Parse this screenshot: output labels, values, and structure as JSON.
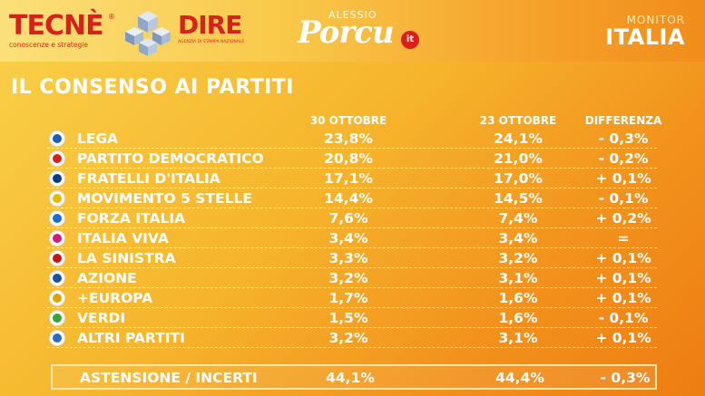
{
  "header": {
    "tecne_logo": "TECNÈ",
    "tecne_tagline": "conoscenze e strategie",
    "tecne_reg": "®",
    "dire_logo": "DIRE",
    "dire_tagline": "AGENZIA DI STAMPA NAZIONALE",
    "porcu_first": "ALESSIO",
    "porcu_last": "Porcu",
    "porcu_it": "it",
    "monitor_small": "MONITOR",
    "monitor_big": "ITALIA"
  },
  "title": "IL CONSENSO AI PARTITI",
  "columns": [
    "30 OTTOBRE",
    "23 OTTOBRE",
    "DIFFERENZA"
  ],
  "parties": [
    {
      "name": "LEGA",
      "oct30": "23,8%",
      "oct23": "24,1%",
      "diff": "- 0,3%",
      "icon": "lega-icon",
      "color": "#1a5fb4"
    },
    {
      "name": "PARTITO DEMOCRATICO",
      "oct30": "20,8%",
      "oct23": "21,0%",
      "diff": "- 0,2%",
      "icon": "pd-icon",
      "color": "#d8201d"
    },
    {
      "name": "FRATELLI D'ITALIA",
      "oct30": "17,1%",
      "oct23": "17,0%",
      "diff": "+ 0,1%",
      "icon": "fdi-icon",
      "color": "#0b3a8a"
    },
    {
      "name": "MOVIMENTO 5 STELLE",
      "oct30": "14,4%",
      "oct23": "14,5%",
      "diff": "- 0,1%",
      "icon": "m5s-icon",
      "color": "#e8b800"
    },
    {
      "name": "FORZA ITALIA",
      "oct30": "7,6%",
      "oct23": "7,4%",
      "diff": "+ 0,2%",
      "icon": "fi-icon",
      "color": "#1c6fd1"
    },
    {
      "name": "ITALIA VIVA",
      "oct30": "3,4%",
      "oct23": "3,4%",
      "diff": "=",
      "icon": "iv-icon",
      "color": "#d21b7c"
    },
    {
      "name": "LA SINISTRA",
      "oct30": "3,3%",
      "oct23": "3,2%",
      "diff": "+ 0,1%",
      "icon": "sinistra-icon",
      "color": "#c81414"
    },
    {
      "name": "AZIONE",
      "oct30": "3,2%",
      "oct23": "3,1%",
      "diff": "+ 0,1%",
      "icon": "azione-icon",
      "color": "#1e4fa8"
    },
    {
      "name": "+EUROPA",
      "oct30": "1,7%",
      "oct23": "1,6%",
      "diff": "+ 0,1%",
      "icon": "europa-icon",
      "color": "#e0a400"
    },
    {
      "name": "VERDI",
      "oct30": "1,5%",
      "oct23": "1,6%",
      "diff": "- 0,1%",
      "icon": "verdi-icon",
      "color": "#3aa537"
    },
    {
      "name": "ALTRI PARTITI",
      "oct30": "3,2%",
      "oct23": "3,1%",
      "diff": "+ 0,1%",
      "icon": "altri-icon",
      "color": "#2a6cc4"
    }
  ],
  "abstention": {
    "name": "ASTENSIONE / INCERTI",
    "oct30": "44,1%",
    "oct23": "44,4%",
    "diff": "- 0,3%"
  }
}
